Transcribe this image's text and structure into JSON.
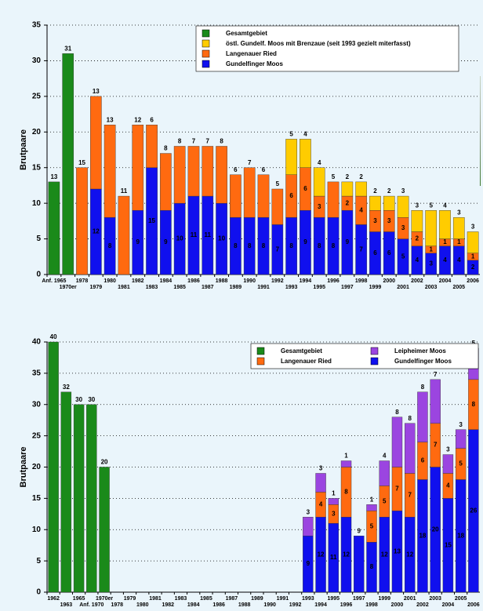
{
  "chart_data": [
    {
      "type": "bar",
      "ylabel": "Brutpaare",
      "ylim": [
        0,
        35
      ],
      "yticks": [
        0,
        5,
        10,
        15,
        20,
        25,
        30,
        35
      ],
      "grid": true,
      "legend": "upper right",
      "categories": [
        "Anf. 1965",
        "1970er",
        "1978",
        "1979",
        "1980",
        "1981",
        "1982",
        "1983",
        "1984",
        "1985",
        "1986",
        "1987",
        "1988",
        "1989",
        "1990",
        "1991",
        "1992",
        "1993",
        "1994",
        "1995",
        "1996",
        "1997",
        "1998",
        "1999",
        "2000",
        "2001",
        "2002",
        "2003",
        "2004",
        "2005",
        "2006"
      ],
      "series": [
        {
          "name": "Gesamtgebiet",
          "color": "#1a8a1a",
          "values": [
            13,
            31,
            null,
            null,
            null,
            null,
            null,
            null,
            null,
            null,
            null,
            null,
            null,
            null,
            null,
            null,
            null,
            null,
            null,
            null,
            null,
            null,
            null,
            null,
            null,
            null,
            null,
            null,
            null,
            null,
            null
          ]
        },
        {
          "name": "östl. Gundelf. Moos mit Brenzaue (seit 1993 gezielt miterfasst)",
          "color": "#ffcc00",
          "values": [
            null,
            null,
            null,
            null,
            null,
            null,
            null,
            null,
            null,
            null,
            null,
            null,
            null,
            null,
            null,
            null,
            null,
            5,
            4,
            4,
            null,
            2,
            2,
            2,
            2,
            3,
            3,
            5,
            4,
            3,
            3
          ]
        },
        {
          "name": "Langenauer Ried",
          "color": "#ff6a10",
          "values": [
            null,
            null,
            15,
            13,
            13,
            11,
            12,
            6,
            8,
            8,
            7,
            7,
            8,
            6,
            7,
            6,
            5,
            6,
            6,
            3,
            5,
            2,
            4,
            3,
            3,
            3,
            2,
            1,
            1,
            1,
            1
          ]
        },
        {
          "name": "Gundelfinger Moos",
          "color": "#1010ee",
          "values": [
            null,
            null,
            null,
            12,
            8,
            null,
            9,
            15,
            9,
            10,
            11,
            11,
            10,
            8,
            8,
            8,
            7,
            8,
            9,
            8,
            8,
            9,
            7,
            6,
            6,
            5,
            4,
            3,
            4,
            4,
            2
          ]
        }
      ]
    },
    {
      "type": "bar",
      "ylabel": "Brutpaare",
      "ylim": [
        0,
        40
      ],
      "yticks": [
        0,
        5,
        10,
        15,
        20,
        25,
        30,
        35,
        40
      ],
      "grid": true,
      "legend": "upper right",
      "categories": [
        "1962",
        "1963",
        "1965",
        "Anf. 1970",
        "1970er",
        "1978",
        "1979",
        "1980",
        "1981",
        "1982",
        "1983",
        "1984",
        "1985",
        "1986",
        "1987",
        "1988",
        "1989",
        "1990",
        "1991",
        "1992",
        "1993",
        "1994",
        "1995",
        "1996",
        "1997",
        "1998",
        "1999",
        "2000",
        "2001",
        "2002",
        "2003",
        "2004",
        "2005",
        "2006"
      ],
      "series": [
        {
          "name": "Gesamtgebiet",
          "color": "#1a8a1a",
          "values": [
            40,
            32,
            30,
            30,
            20,
            null,
            null,
            null,
            null,
            null,
            null,
            null,
            null,
            null,
            null,
            null,
            null,
            null,
            null,
            null,
            null,
            null,
            null,
            null,
            null,
            null,
            null,
            null,
            null,
            null,
            null,
            null,
            null,
            null
          ]
        },
        {
          "name": "Leipheimer Moos",
          "color": "#9b45e0",
          "values": [
            null,
            null,
            null,
            null,
            null,
            null,
            null,
            null,
            null,
            null,
            null,
            null,
            null,
            null,
            null,
            null,
            null,
            null,
            null,
            null,
            3,
            3,
            1,
            1,
            null,
            1,
            4,
            8,
            8,
            8,
            7,
            3,
            3,
            5
          ]
        },
        {
          "name": "Langenauer Ried",
          "color": "#ff6a10",
          "values": [
            null,
            null,
            null,
            null,
            null,
            null,
            null,
            null,
            null,
            null,
            null,
            null,
            null,
            null,
            null,
            null,
            null,
            null,
            null,
            null,
            null,
            4,
            3,
            8,
            null,
            5,
            5,
            7,
            7,
            6,
            7,
            4,
            5,
            8
          ]
        },
        {
          "name": "Gundelfinger Moos",
          "color": "#1010ee",
          "values": [
            null,
            null,
            null,
            null,
            null,
            null,
            null,
            null,
            null,
            null,
            null,
            null,
            null,
            null,
            null,
            null,
            null,
            null,
            null,
            null,
            9,
            12,
            11,
            12,
            9,
            8,
            12,
            13,
            12,
            18,
            20,
            15,
            18,
            26
          ]
        }
      ]
    }
  ]
}
